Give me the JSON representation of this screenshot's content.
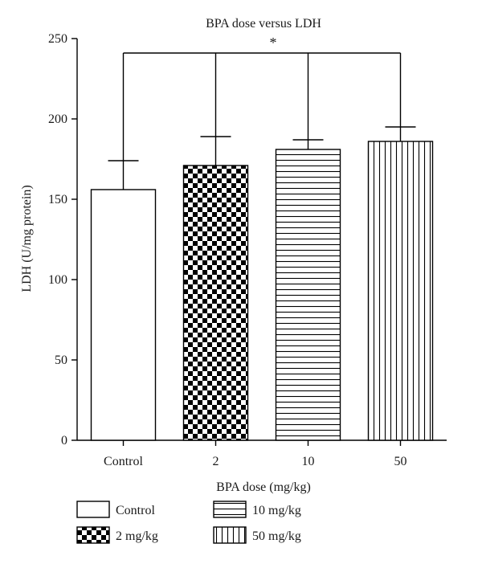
{
  "chart_data": {
    "type": "bar",
    "title": "BPA dose versus LDH",
    "xlabel": "BPA dose (mg/kg)",
    "ylabel": "LDH (U/mg protein)",
    "ylim": [
      0,
      250
    ],
    "yticks": [
      0,
      50,
      100,
      150,
      200,
      250
    ],
    "grid": false,
    "categories": [
      "Control",
      "2",
      "10",
      "50"
    ],
    "values": [
      156,
      171,
      181,
      186
    ],
    "error_upper": [
      18,
      18,
      6,
      9
    ],
    "patterns": [
      "none",
      "checker",
      "horizontal-lines",
      "vertical-lines"
    ],
    "significance": {
      "label": "*",
      "from": "Control",
      "to": [
        "2",
        "10",
        "50"
      ]
    },
    "legend": {
      "placement": "bottom",
      "entries": [
        "Control",
        "2 mg/kg",
        "10 mg/kg",
        "50 mg/kg"
      ]
    }
  }
}
